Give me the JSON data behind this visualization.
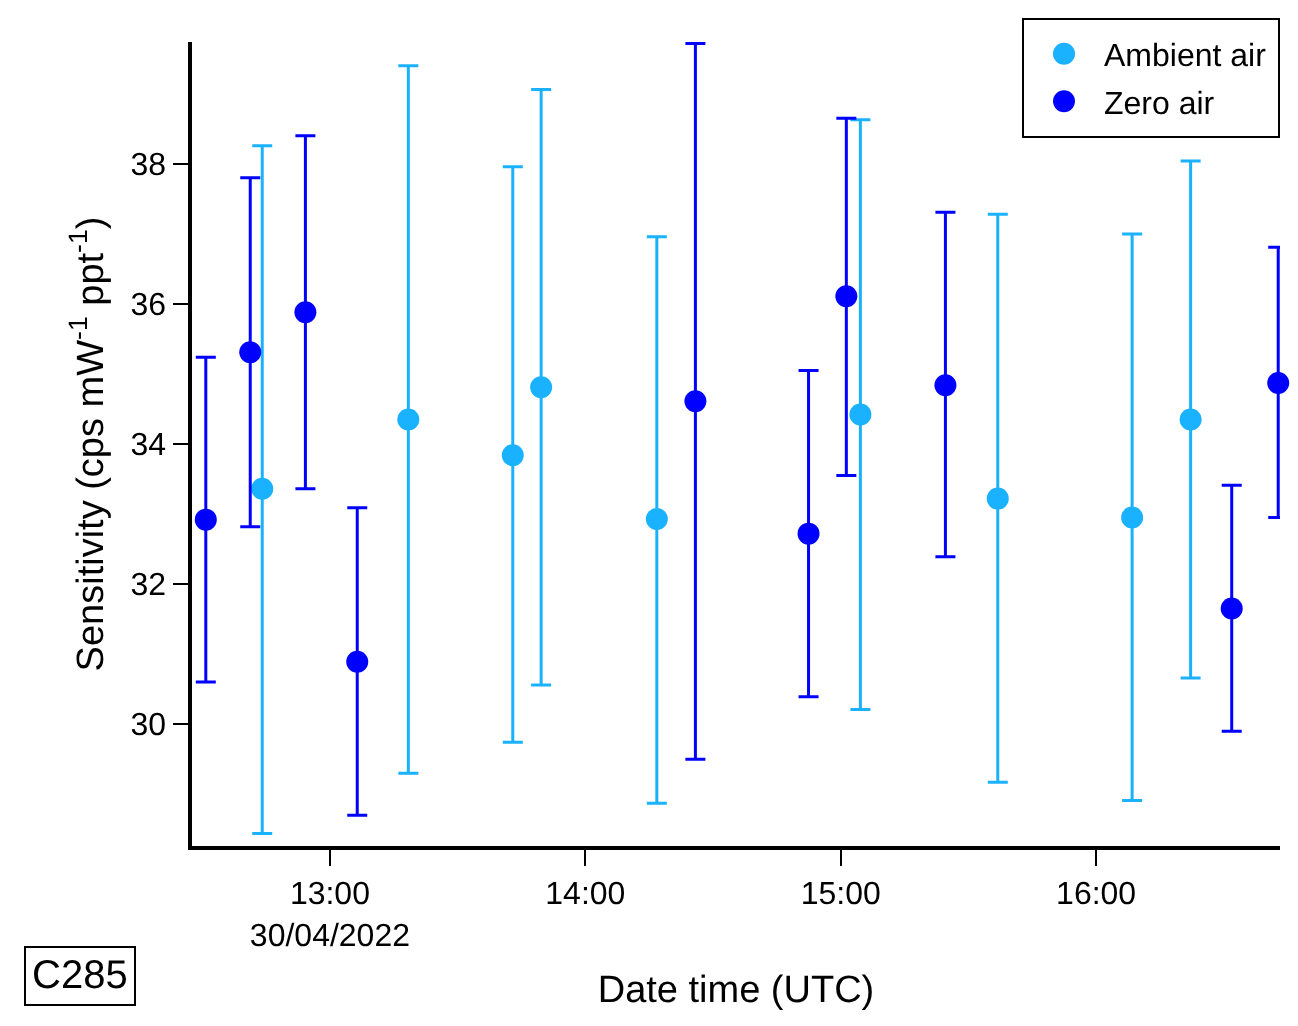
{
  "chart_data": {
    "type": "scatter",
    "xlabel": "Date time (UTC)",
    "ylabel": "Sensitivity (cps mW$^{-1}$ ppt$^{-1}$)",
    "xlim": [
      12.46,
      16.72
    ],
    "xticks": [
      {
        "value": 13,
        "label": "13:00\n30/04/2022"
      },
      {
        "value": 14,
        "label": "14:00"
      },
      {
        "value": 15,
        "label": "15:00"
      },
      {
        "value": 16,
        "label": "16:00"
      }
    ],
    "ylim": [
      28.26,
      39.74
    ],
    "yticks": [
      30,
      32,
      34,
      36,
      38
    ],
    "legend": "top right",
    "marker": "circle",
    "series": [
      {
        "name": "Ambient air",
        "color": "#1ab2ff",
        "x": [
          12.735,
          13.307,
          13.716,
          13.827,
          14.28,
          15.077,
          15.615,
          16.141,
          16.37
        ],
        "values": [
          33.36,
          34.35,
          33.84,
          34.81,
          32.93,
          34.42,
          33.22,
          32.95,
          34.35
        ],
        "errors": [
          [
            28.44,
            38.26
          ],
          [
            29.3,
            39.4
          ],
          [
            29.74,
            37.96
          ],
          [
            30.56,
            39.06
          ],
          [
            28.87,
            36.96
          ],
          [
            30.21,
            38.63
          ],
          [
            29.17,
            37.28
          ],
          [
            28.91,
            37.0
          ],
          [
            30.66,
            38.04
          ]
        ]
      },
      {
        "name": "Zero air",
        "color": "#0000ff",
        "x": [
          12.514,
          12.688,
          12.904,
          13.107,
          14.431,
          14.874,
          15.022,
          15.41,
          16.531,
          16.713
        ],
        "values": [
          32.92,
          35.31,
          35.88,
          30.89,
          34.61,
          32.72,
          36.11,
          34.84,
          31.65,
          34.87
        ],
        "errors": [
          [
            30.6,
            35.24
          ],
          [
            32.82,
            37.8
          ],
          [
            33.36,
            38.4
          ],
          [
            28.7,
            33.09
          ],
          [
            29.5,
            39.72
          ],
          [
            30.39,
            35.05
          ],
          [
            33.55,
            38.65
          ],
          [
            32.39,
            37.31
          ],
          [
            29.9,
            33.41
          ],
          [
            32.95,
            36.81
          ]
        ]
      }
    ],
    "annotations": [
      "C285"
    ]
  }
}
